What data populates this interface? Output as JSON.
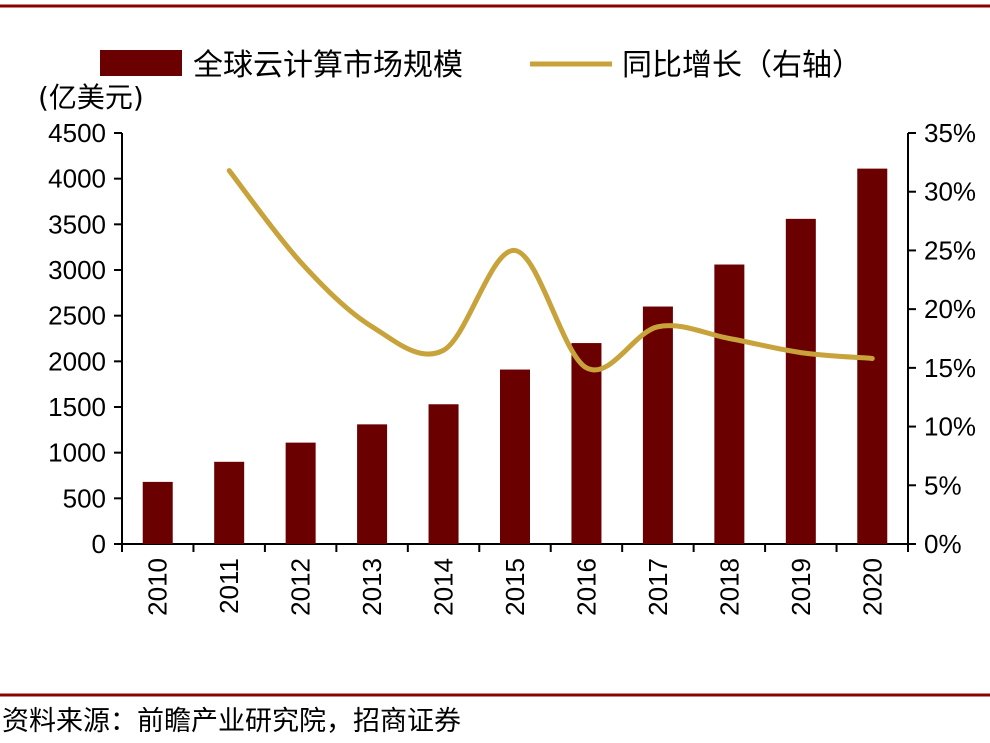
{
  "chart_data": {
    "type": "bar",
    "categories": [
      "2010",
      "2011",
      "2012",
      "2013",
      "2014",
      "2015",
      "2016",
      "2017",
      "2018",
      "2019",
      "2020"
    ],
    "series": [
      {
        "name": "全球云计算市场规模",
        "chart_type": "bar",
        "axis": "left",
        "color": "#6b0000",
        "values": [
          680,
          900,
          1110,
          1310,
          1530,
          1910,
          2200,
          2600,
          3060,
          3560,
          4110
        ]
      },
      {
        "name": "同比增长（右轴）",
        "chart_type": "line",
        "axis": "right",
        "color": "#c8a23a",
        "values": [
          null,
          0.318,
          0.24,
          0.185,
          0.165,
          0.25,
          0.15,
          0.185,
          0.175,
          0.163,
          0.158
        ]
      }
    ],
    "left_axis": {
      "unit_label": "(亿美元)",
      "ylim": [
        0,
        4500
      ],
      "ticks": [
        "0",
        "500",
        "1000",
        "1500",
        "2000",
        "2500",
        "3000",
        "3500",
        "4000",
        "4500"
      ]
    },
    "right_axis": {
      "ylim": [
        0,
        0.35
      ],
      "ticks": [
        "0%",
        "5%",
        "10%",
        "15%",
        "20%",
        "25%",
        "30%",
        "35%"
      ]
    },
    "legend_position": "top",
    "grid": false
  },
  "source_note": "资料来源：前瞻产业研究院，招商证券",
  "colors": {
    "border": "#8b0000",
    "bar": "#6b0000",
    "line": "#c8a23a",
    "axis": "#000000"
  }
}
